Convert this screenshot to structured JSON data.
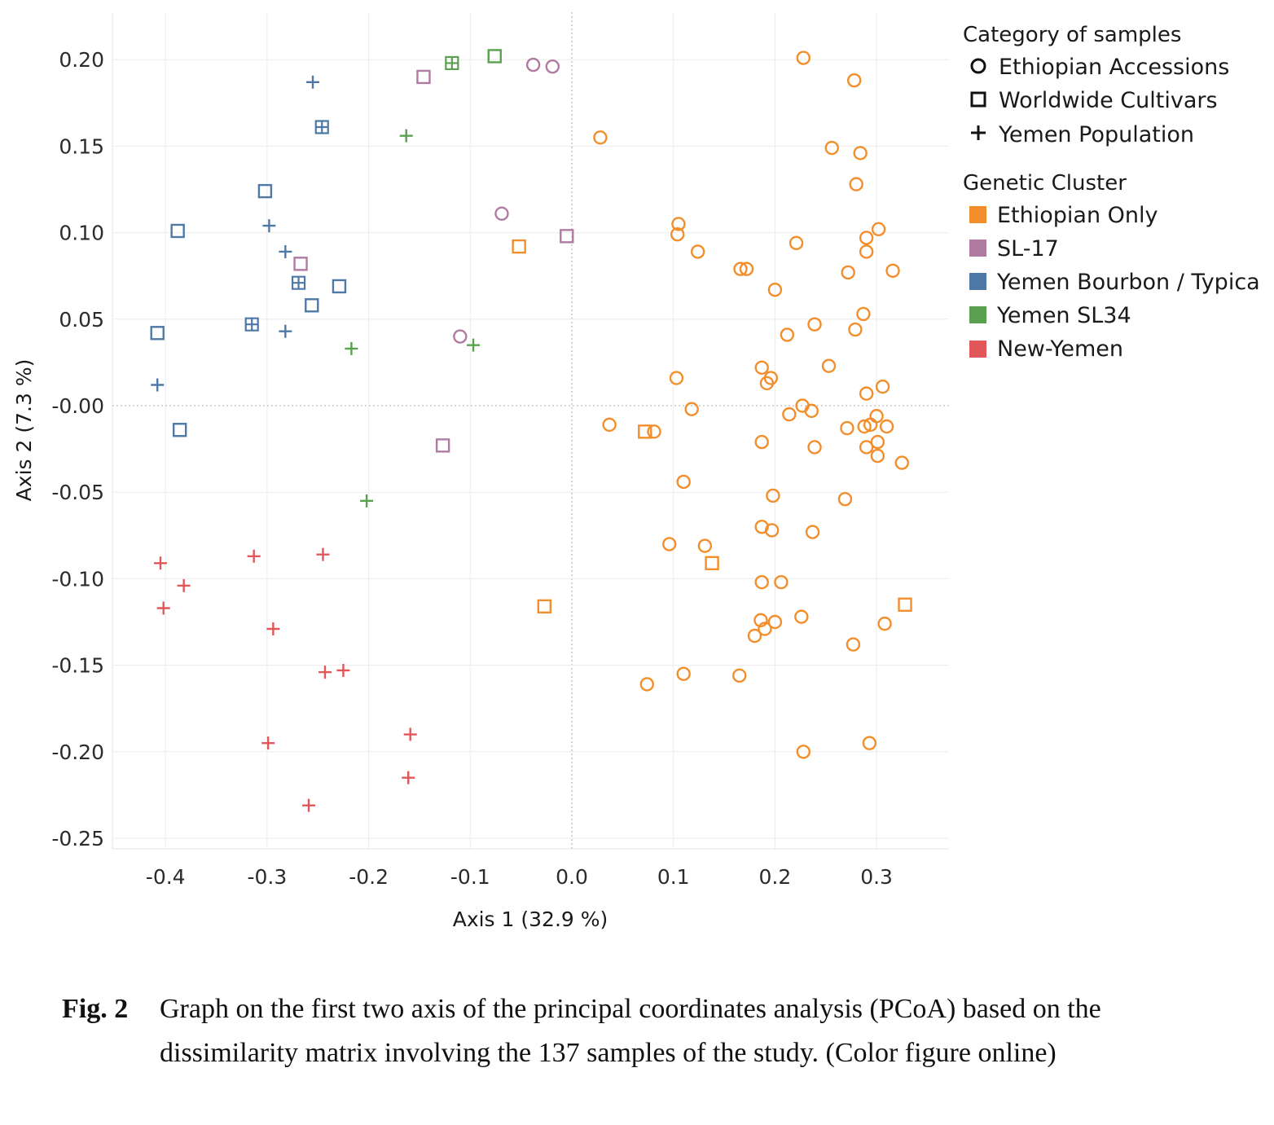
{
  "chart_data": {
    "type": "scatter",
    "xlabel": "Axis 1 (32.9 %)",
    "ylabel": "Axis 2 (7.3 %)",
    "xlim": [
      -0.45,
      0.37
    ],
    "ylim": [
      -0.26,
      0.22
    ],
    "x_ticks": [
      -0.4,
      -0.3,
      -0.2,
      -0.1,
      0.0,
      0.1,
      0.2,
      0.3
    ],
    "x_tick_labels": [
      "-0.4",
      "-0.3",
      "-0.2",
      "-0.1",
      "0.0",
      "0.1",
      "0.2",
      "0.3"
    ],
    "y_ticks": [
      0.2,
      0.15,
      0.1,
      0.05,
      0.0,
      -0.05,
      -0.1,
      -0.15,
      -0.2,
      -0.25
    ],
    "y_tick_labels": [
      "0.20",
      "0.15",
      "0.10",
      "0.05",
      "-0.00",
      "-0.05",
      "-0.10",
      "-0.15",
      "-0.20",
      "-0.25"
    ],
    "grid": true,
    "zero_lines": "dotted",
    "legend_placement": "right",
    "legend": {
      "shape_title": "Category of samples",
      "shapes": [
        {
          "key": "circle",
          "label": "Ethiopian Accessions"
        },
        {
          "key": "square",
          "label": "Worldwide Cultivars"
        },
        {
          "key": "plus",
          "label": "Yemen Population"
        }
      ],
      "color_title": "Genetic Cluster",
      "clusters": [
        {
          "key": "eth",
          "label": "Ethiopian Only",
          "color": "#f28e2b"
        },
        {
          "key": "sl17",
          "label": "SL-17",
          "color": "#b07aa1"
        },
        {
          "key": "yb",
          "label": "Yemen Bourbon / Typica",
          "color": "#4e79a7"
        },
        {
          "key": "sl34",
          "label": "Yemen SL34",
          "color": "#59a14f"
        },
        {
          "key": "ny",
          "label": "New-Yemen",
          "color": "#e15759"
        }
      ]
    },
    "series": [
      {
        "shape": "circle",
        "cluster": "eth",
        "points": [
          [
            0.228,
            0.201
          ],
          [
            0.278,
            0.188
          ],
          [
            0.028,
            0.155
          ],
          [
            0.256,
            0.149
          ],
          [
            0.284,
            0.146
          ],
          [
            0.28,
            0.128
          ],
          [
            0.105,
            0.105
          ],
          [
            0.302,
            0.102
          ],
          [
            0.104,
            0.099
          ],
          [
            0.29,
            0.097
          ],
          [
            0.221,
            0.094
          ],
          [
            0.124,
            0.089
          ],
          [
            0.29,
            0.089
          ],
          [
            0.166,
            0.079
          ],
          [
            0.172,
            0.079
          ],
          [
            0.272,
            0.077
          ],
          [
            0.316,
            0.078
          ],
          [
            0.2,
            0.067
          ],
          [
            0.287,
            0.053
          ],
          [
            0.239,
            0.047
          ],
          [
            0.279,
            0.044
          ],
          [
            0.212,
            0.041
          ],
          [
            0.187,
            0.022
          ],
          [
            0.253,
            0.023
          ],
          [
            0.103,
            0.016
          ],
          [
            0.196,
            0.016
          ],
          [
            0.192,
            0.013
          ],
          [
            0.306,
            0.011
          ],
          [
            0.29,
            0.007
          ],
          [
            0.227,
            0.0
          ],
          [
            0.118,
            -0.002
          ],
          [
            0.236,
            -0.003
          ],
          [
            0.214,
            -0.005
          ],
          [
            0.3,
            -0.006
          ],
          [
            0.037,
            -0.011
          ],
          [
            0.294,
            -0.011
          ],
          [
            0.31,
            -0.012
          ],
          [
            0.288,
            -0.012
          ],
          [
            0.271,
            -0.013
          ],
          [
            0.081,
            -0.015
          ],
          [
            0.301,
            -0.021
          ],
          [
            0.187,
            -0.021
          ],
          [
            0.29,
            -0.024
          ],
          [
            0.239,
            -0.024
          ],
          [
            0.301,
            -0.029
          ],
          [
            0.325,
            -0.033
          ],
          [
            0.11,
            -0.044
          ],
          [
            0.198,
            -0.052
          ],
          [
            0.269,
            -0.054
          ],
          [
            0.187,
            -0.07
          ],
          [
            0.197,
            -0.072
          ],
          [
            0.237,
            -0.073
          ],
          [
            0.096,
            -0.08
          ],
          [
            0.131,
            -0.081
          ],
          [
            0.187,
            -0.102
          ],
          [
            0.206,
            -0.102
          ],
          [
            0.226,
            -0.122
          ],
          [
            0.186,
            -0.124
          ],
          [
            0.2,
            -0.125
          ],
          [
            0.308,
            -0.126
          ],
          [
            0.19,
            -0.129
          ],
          [
            0.18,
            -0.133
          ],
          [
            0.277,
            -0.138
          ],
          [
            0.11,
            -0.155
          ],
          [
            0.165,
            -0.156
          ],
          [
            0.074,
            -0.161
          ],
          [
            0.293,
            -0.195
          ],
          [
            0.228,
            -0.2
          ]
        ]
      },
      {
        "shape": "circle",
        "cluster": "sl17",
        "points": [
          [
            -0.038,
            0.197
          ],
          [
            -0.019,
            0.196
          ],
          [
            -0.069,
            0.111
          ],
          [
            -0.11,
            0.04
          ]
        ]
      },
      {
        "shape": "square",
        "cluster": "eth",
        "points": [
          [
            -0.052,
            0.092
          ],
          [
            0.072,
            -0.015
          ],
          [
            0.138,
            -0.091
          ],
          [
            -0.027,
            -0.116
          ],
          [
            0.328,
            -0.115
          ]
        ]
      },
      {
        "shape": "square",
        "cluster": "sl17",
        "points": [
          [
            -0.146,
            0.19
          ],
          [
            -0.005,
            0.098
          ],
          [
            -0.267,
            0.082
          ],
          [
            -0.127,
            -0.023
          ]
        ]
      },
      {
        "shape": "square",
        "cluster": "yb",
        "points": [
          [
            -0.302,
            0.124
          ],
          [
            -0.388,
            0.101
          ],
          [
            -0.229,
            0.069
          ],
          [
            -0.256,
            0.058
          ],
          [
            -0.408,
            0.042
          ],
          [
            -0.386,
            -0.014
          ]
        ]
      },
      {
        "shape": "square",
        "cluster": "sl34",
        "points": [
          [
            -0.076,
            0.202
          ]
        ]
      },
      {
        "shape": "squareplus",
        "cluster": "yb",
        "points": [
          [
            -0.246,
            0.161
          ],
          [
            -0.269,
            0.071
          ],
          [
            -0.315,
            0.047
          ]
        ]
      },
      {
        "shape": "squareplus",
        "cluster": "sl34",
        "points": [
          [
            -0.118,
            0.198
          ]
        ]
      },
      {
        "shape": "plus",
        "cluster": "yb",
        "points": [
          [
            -0.255,
            0.187
          ],
          [
            -0.298,
            0.104
          ],
          [
            -0.282,
            0.089
          ],
          [
            -0.282,
            0.043
          ],
          [
            -0.408,
            0.012
          ]
        ]
      },
      {
        "shape": "plus",
        "cluster": "sl34",
        "points": [
          [
            -0.163,
            0.156
          ],
          [
            -0.217,
            0.033
          ],
          [
            -0.097,
            0.035
          ],
          [
            -0.202,
            -0.055
          ]
        ]
      },
      {
        "shape": "plus",
        "cluster": "ny",
        "points": [
          [
            -0.405,
            -0.091
          ],
          [
            -0.313,
            -0.087
          ],
          [
            -0.245,
            -0.086
          ],
          [
            -0.382,
            -0.104
          ],
          [
            -0.402,
            -0.117
          ],
          [
            -0.294,
            -0.129
          ],
          [
            -0.243,
            -0.154
          ],
          [
            -0.225,
            -0.153
          ],
          [
            -0.159,
            -0.19
          ],
          [
            -0.299,
            -0.195
          ],
          [
            -0.161,
            -0.215
          ],
          [
            -0.259,
            -0.231
          ]
        ]
      }
    ]
  },
  "caption": {
    "label": "Fig. 2",
    "text": "Graph on the first two axis of the principal coordinates analysis (PCoA) based on the dissimilarity matrix involving the 137 samples of the study. (Color figure online)"
  }
}
